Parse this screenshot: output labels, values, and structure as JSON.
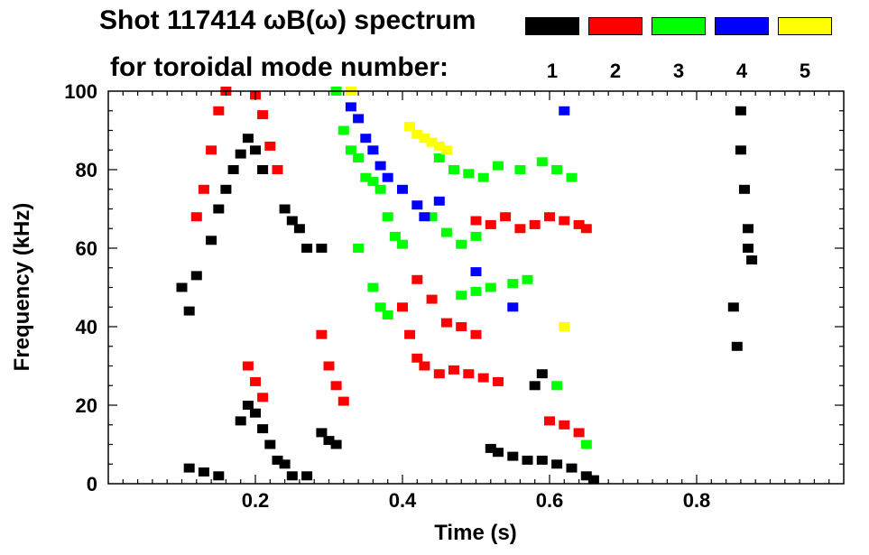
{
  "title_line1": "Shot 117414 ωB(ω) spectrum",
  "title_line2": "for toroidal mode number:",
  "legend": [
    {
      "mode": "1",
      "color": "#000000"
    },
    {
      "mode": "2",
      "color": "#ff0000"
    },
    {
      "mode": "3",
      "color": "#00ff00"
    },
    {
      "mode": "4",
      "color": "#0000ff"
    },
    {
      "mode": "5",
      "color": "#ffff00"
    }
  ],
  "chart_data": {
    "type": "heatmap",
    "title": "Shot 117414 ωB(ω) spectrum",
    "subtitle": "for toroidal mode number:",
    "xlabel": "Time (s)",
    "ylabel": "Frequency (kHz)",
    "xlim": [
      0.0,
      1.0
    ],
    "ylim": [
      0,
      100
    ],
    "xticks": [
      0.2,
      0.4,
      0.6,
      0.8
    ],
    "yticks": [
      0,
      20,
      40,
      60,
      80,
      100
    ],
    "xtick_labels": [
      "0.2",
      "0.4",
      "0.6",
      "0.8"
    ],
    "ytick_labels": [
      "0",
      "20",
      "40",
      "60",
      "80",
      "100"
    ],
    "series": [
      {
        "name": "n=1",
        "color": "#000000",
        "points": [
          [
            0.1,
            50
          ],
          [
            0.11,
            44
          ],
          [
            0.12,
            53
          ],
          [
            0.14,
            62
          ],
          [
            0.15,
            70
          ],
          [
            0.16,
            75
          ],
          [
            0.17,
            80
          ],
          [
            0.18,
            84
          ],
          [
            0.19,
            88
          ],
          [
            0.2,
            85
          ],
          [
            0.21,
            80
          ],
          [
            0.24,
            70
          ],
          [
            0.25,
            67
          ],
          [
            0.26,
            65
          ],
          [
            0.27,
            60
          ],
          [
            0.29,
            60
          ],
          [
            0.18,
            16
          ],
          [
            0.19,
            20
          ],
          [
            0.2,
            18
          ],
          [
            0.21,
            14
          ],
          [
            0.22,
            10
          ],
          [
            0.23,
            6
          ],
          [
            0.24,
            5
          ],
          [
            0.29,
            13
          ],
          [
            0.3,
            11
          ],
          [
            0.31,
            10
          ],
          [
            0.11,
            4
          ],
          [
            0.13,
            3
          ],
          [
            0.15,
            2
          ],
          [
            0.25,
            2
          ],
          [
            0.27,
            2
          ],
          [
            0.52,
            9
          ],
          [
            0.53,
            8
          ],
          [
            0.55,
            7
          ],
          [
            0.57,
            6
          ],
          [
            0.59,
            6
          ],
          [
            0.61,
            5
          ],
          [
            0.63,
            4
          ],
          [
            0.65,
            2
          ],
          [
            0.66,
            1
          ],
          [
            0.58,
            25
          ],
          [
            0.59,
            28
          ],
          [
            0.86,
            95
          ],
          [
            0.86,
            85
          ],
          [
            0.865,
            75
          ],
          [
            0.87,
            65
          ],
          [
            0.87,
            60
          ],
          [
            0.875,
            57
          ],
          [
            0.85,
            45
          ],
          [
            0.855,
            35
          ]
        ]
      },
      {
        "name": "n=2",
        "color": "#ff0000",
        "points": [
          [
            0.12,
            68
          ],
          [
            0.13,
            75
          ],
          [
            0.14,
            85
          ],
          [
            0.15,
            95
          ],
          [
            0.16,
            100
          ],
          [
            0.2,
            99
          ],
          [
            0.21,
            94
          ],
          [
            0.22,
            86
          ],
          [
            0.23,
            80
          ],
          [
            0.19,
            30
          ],
          [
            0.2,
            26
          ],
          [
            0.21,
            22
          ],
          [
            0.29,
            38
          ],
          [
            0.3,
            30
          ],
          [
            0.31,
            25
          ],
          [
            0.32,
            21
          ],
          [
            0.4,
            45
          ],
          [
            0.41,
            38
          ],
          [
            0.42,
            32
          ],
          [
            0.43,
            30
          ],
          [
            0.45,
            28
          ],
          [
            0.47,
            29
          ],
          [
            0.49,
            28
          ],
          [
            0.51,
            27
          ],
          [
            0.53,
            26
          ],
          [
            0.42,
            52
          ],
          [
            0.44,
            47
          ],
          [
            0.46,
            41
          ],
          [
            0.48,
            40
          ],
          [
            0.5,
            38
          ],
          [
            0.5,
            67
          ],
          [
            0.52,
            66
          ],
          [
            0.54,
            68
          ],
          [
            0.56,
            65
          ],
          [
            0.58,
            66
          ],
          [
            0.6,
            68
          ],
          [
            0.62,
            67
          ],
          [
            0.64,
            66
          ],
          [
            0.65,
            65
          ],
          [
            0.6,
            16
          ],
          [
            0.62,
            15
          ],
          [
            0.64,
            13
          ]
        ]
      },
      {
        "name": "n=3",
        "color": "#00ff00",
        "points": [
          [
            0.31,
            100
          ],
          [
            0.32,
            90
          ],
          [
            0.33,
            85
          ],
          [
            0.34,
            83
          ],
          [
            0.35,
            78
          ],
          [
            0.36,
            77
          ],
          [
            0.37,
            75
          ],
          [
            0.38,
            68
          ],
          [
            0.39,
            63
          ],
          [
            0.4,
            61
          ],
          [
            0.34,
            60
          ],
          [
            0.36,
            50
          ],
          [
            0.37,
            45
          ],
          [
            0.38,
            43
          ],
          [
            0.45,
            83
          ],
          [
            0.47,
            80
          ],
          [
            0.49,
            79
          ],
          [
            0.51,
            78
          ],
          [
            0.53,
            81
          ],
          [
            0.56,
            80
          ],
          [
            0.59,
            82
          ],
          [
            0.61,
            80
          ],
          [
            0.63,
            78
          ],
          [
            0.44,
            68
          ],
          [
            0.46,
            64
          ],
          [
            0.48,
            61
          ],
          [
            0.5,
            63
          ],
          [
            0.48,
            48
          ],
          [
            0.5,
            49
          ],
          [
            0.52,
            50
          ],
          [
            0.55,
            51
          ],
          [
            0.57,
            52
          ],
          [
            0.61,
            25
          ],
          [
            0.65,
            10
          ]
        ]
      },
      {
        "name": "n=4",
        "color": "#0000ff",
        "points": [
          [
            0.33,
            96
          ],
          [
            0.34,
            93
          ],
          [
            0.35,
            88
          ],
          [
            0.36,
            85
          ],
          [
            0.37,
            81
          ],
          [
            0.38,
            78
          ],
          [
            0.4,
            75
          ],
          [
            0.42,
            71
          ],
          [
            0.43,
            68
          ],
          [
            0.45,
            72
          ],
          [
            0.5,
            54
          ],
          [
            0.55,
            45
          ],
          [
            0.62,
            95
          ]
        ]
      },
      {
        "name": "n=5",
        "color": "#ffff00",
        "points": [
          [
            0.41,
            91
          ],
          [
            0.42,
            89
          ],
          [
            0.43,
            88
          ],
          [
            0.44,
            87
          ],
          [
            0.45,
            86
          ],
          [
            0.46,
            85
          ],
          [
            0.33,
            100
          ],
          [
            0.62,
            40
          ]
        ]
      }
    ]
  }
}
